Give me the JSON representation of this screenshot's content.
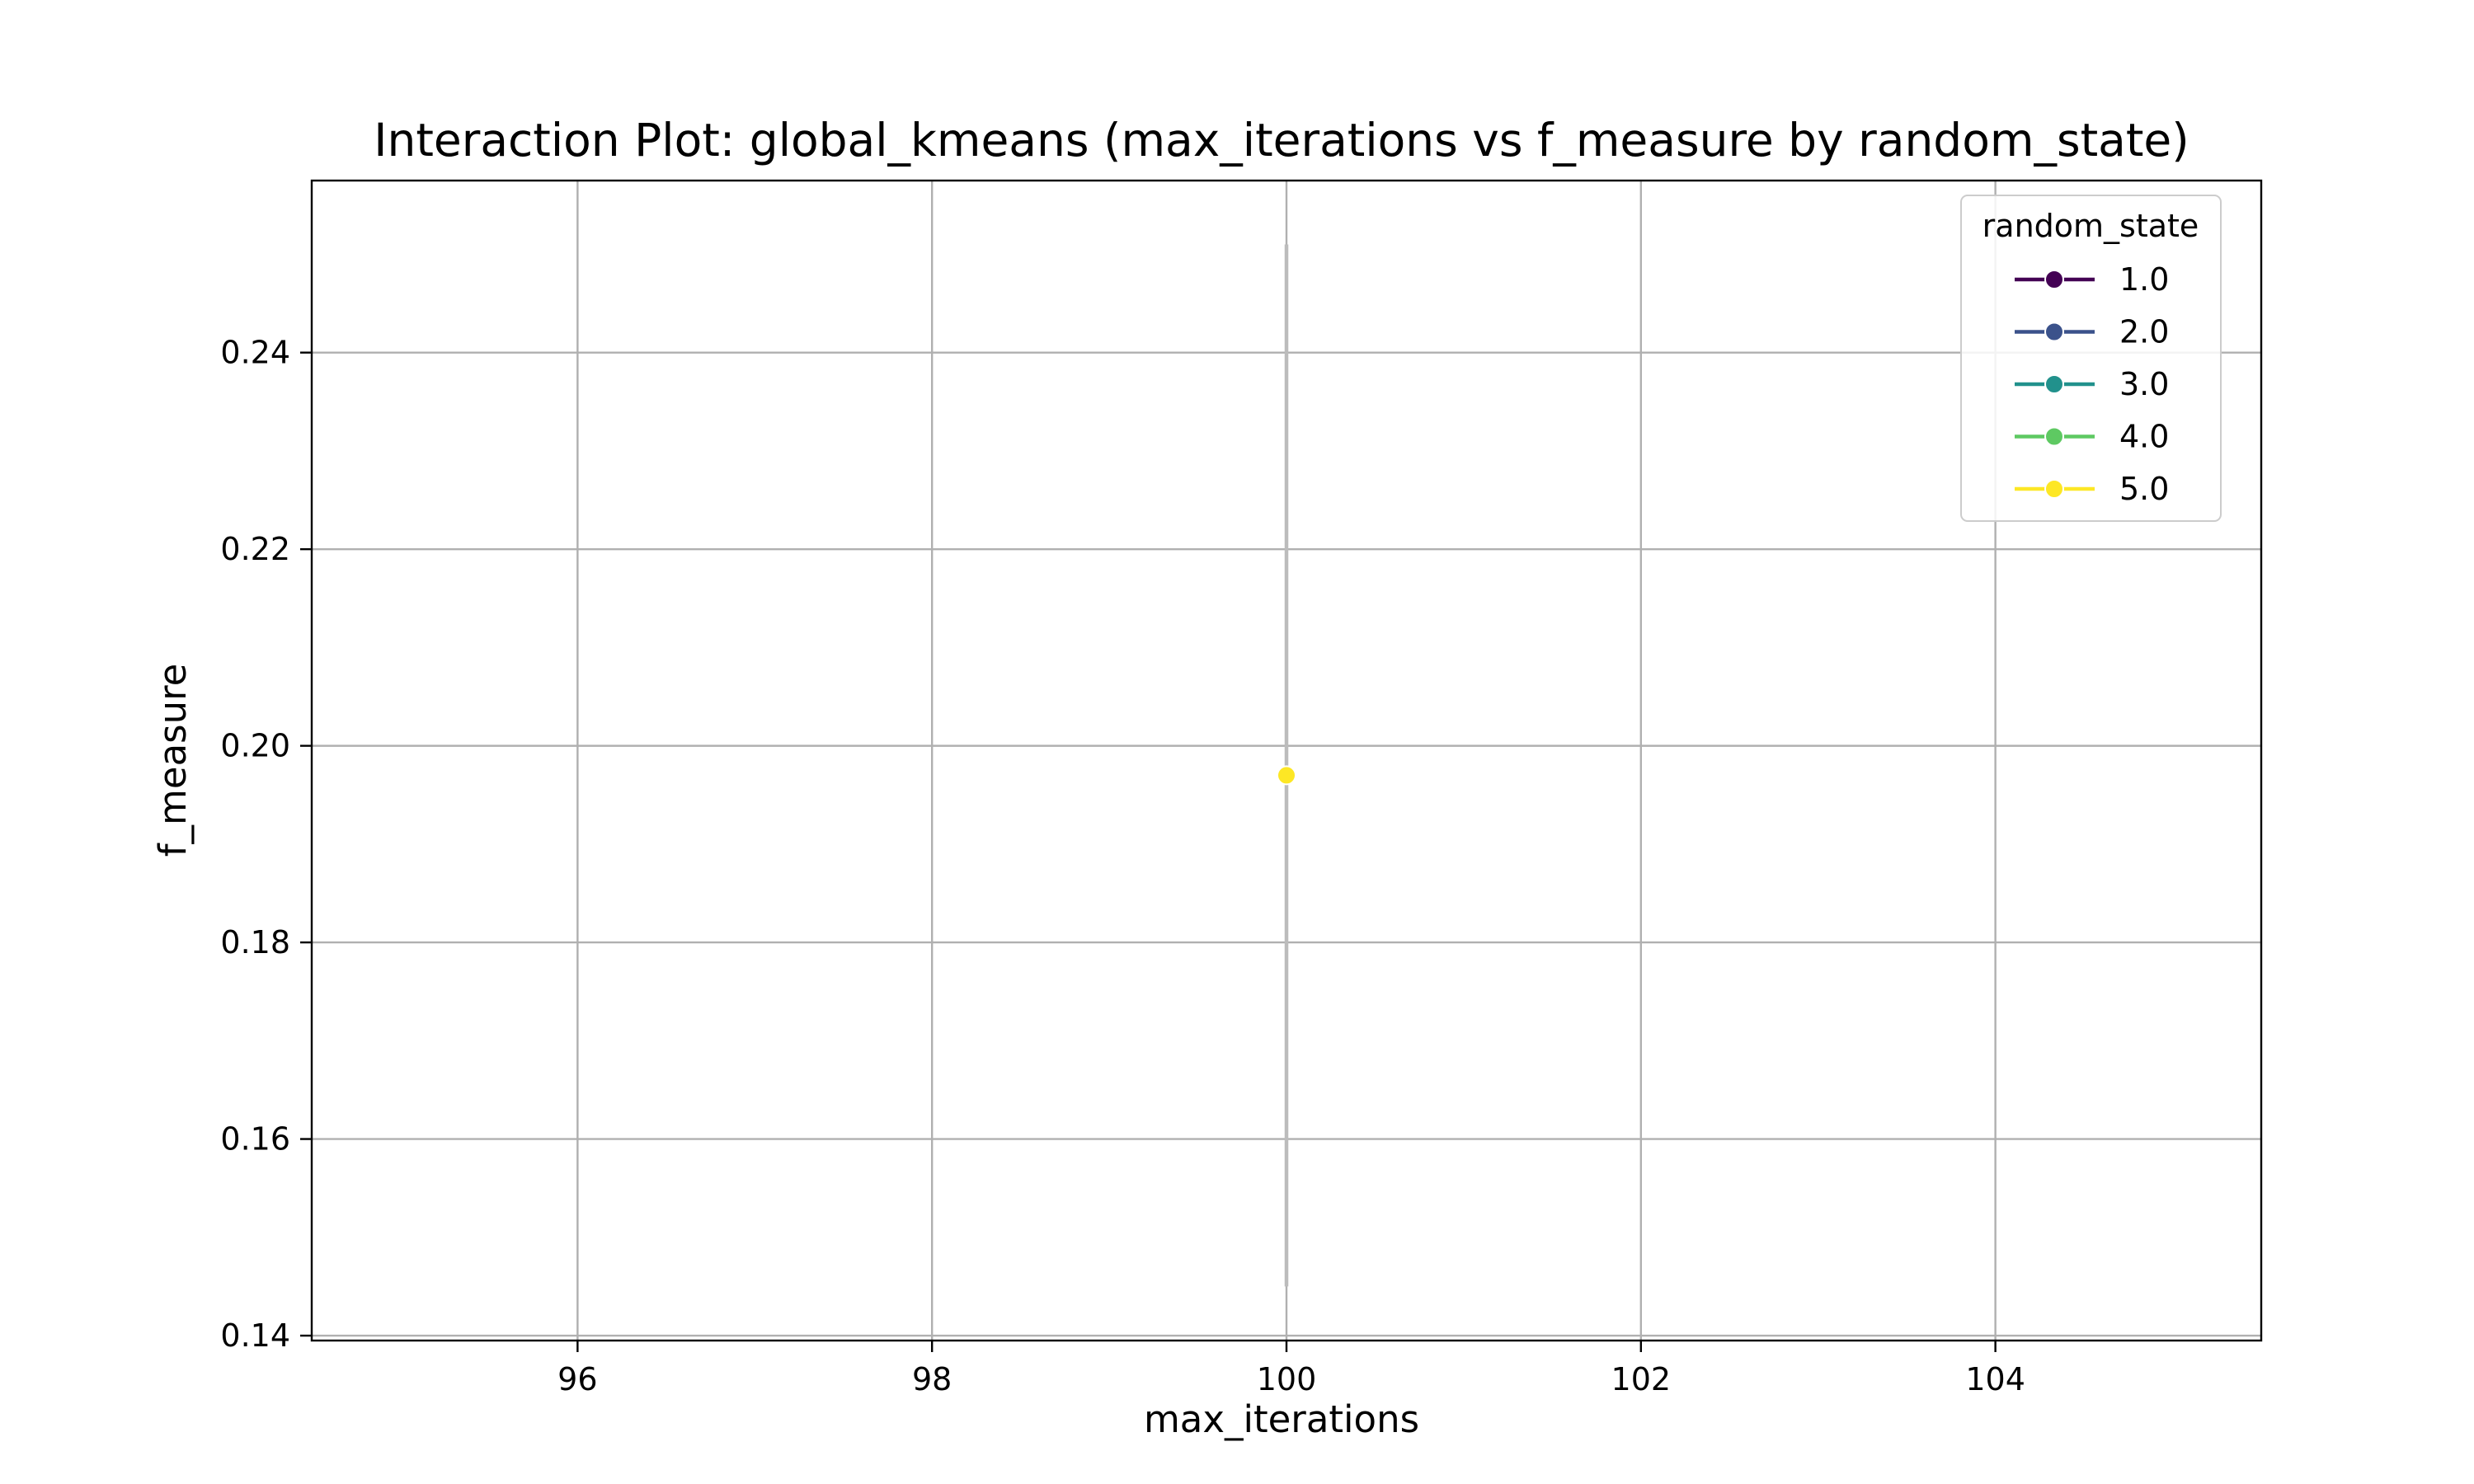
{
  "chart_data": {
    "type": "line",
    "title": "Interaction Plot: global_kmeans (max_iterations vs f_measure by random_state)",
    "xlabel": "max_iterations",
    "ylabel": "f_measure",
    "xlim": [
      94.5,
      105.5
    ],
    "ylim": [
      0.1395,
      0.2575
    ],
    "x_ticks": [
      96,
      98,
      100,
      102,
      104
    ],
    "y_ticks": [
      0.14,
      0.16,
      0.18,
      0.2,
      0.22,
      0.24
    ],
    "y_tick_labels": [
      "0.14",
      "0.16",
      "0.18",
      "0.20",
      "0.22",
      "0.24"
    ],
    "grid": true,
    "legend": {
      "title": "random_state",
      "placement": "top-right"
    },
    "series": [
      {
        "name": "1.0",
        "color": "#440154",
        "points": []
      },
      {
        "name": "2.0",
        "color": "#3b528b",
        "points": []
      },
      {
        "name": "3.0",
        "color": "#21918c",
        "points": []
      },
      {
        "name": "4.0",
        "color": "#5ec962",
        "points": []
      },
      {
        "name": "5.0",
        "color": "#fde725",
        "points": [
          {
            "x": 100,
            "y": 0.197
          }
        ]
      }
    ],
    "error_bars": [
      {
        "x": 100,
        "y_low": 0.145,
        "y_high": 0.251,
        "color": "#bcbcbc"
      }
    ]
  }
}
